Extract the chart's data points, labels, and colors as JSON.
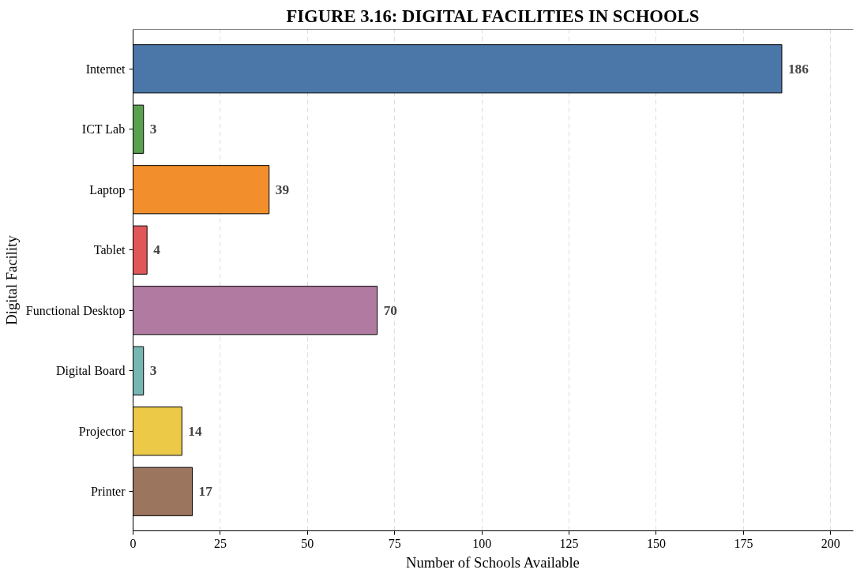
{
  "chart_data": {
    "type": "bar",
    "orientation": "horizontal",
    "title": "FIGURE 3.16: DIGITAL FACILITIES IN SCHOOLS",
    "xlabel": "Number of Schools Available",
    "ylabel": "Digital Facility",
    "categories": [
      "Internet",
      "ICT Lab",
      "Laptop",
      "Tablet",
      "Functional Desktop",
      "Digital Board",
      "Projector",
      "Printer"
    ],
    "values": [
      186,
      3,
      39,
      4,
      70,
      3,
      14,
      17
    ],
    "colors": [
      "#4a76a8",
      "#59a14f",
      "#f28e2b",
      "#e15759",
      "#b07aa1",
      "#76b7b2",
      "#edc948",
      "#9c755f"
    ],
    "xlim": [
      0,
      206.5
    ],
    "xticks": [
      0,
      25,
      50,
      75,
      100,
      125,
      150,
      175,
      200
    ],
    "grid": "x",
    "data_labels": true
  }
}
